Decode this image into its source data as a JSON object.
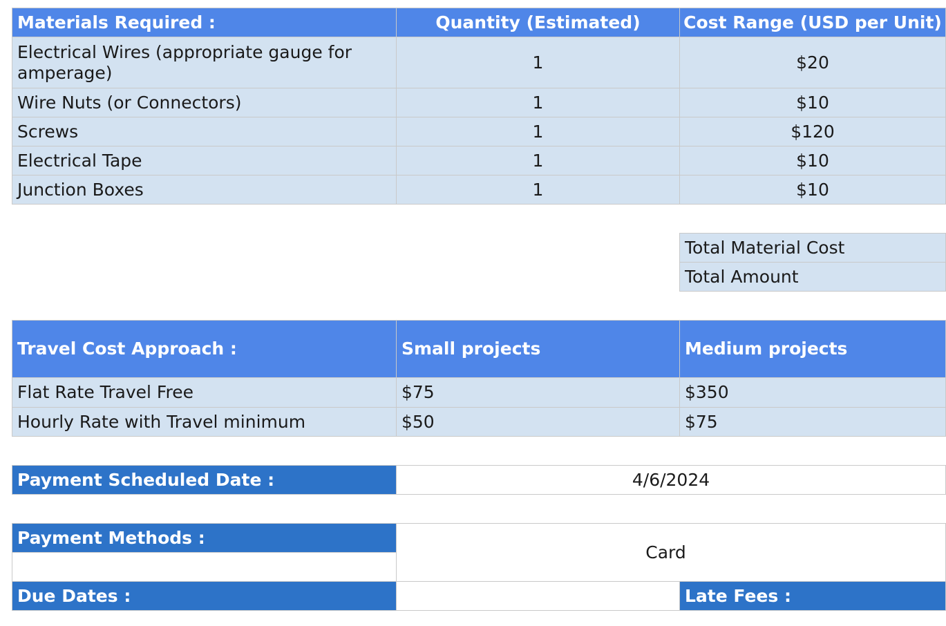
{
  "materials": {
    "headers": [
      "Materials Required :",
      "Quantity (Estimated)",
      "Cost Range (USD per Unit)"
    ],
    "rows": [
      {
        "item": "Electrical Wires (appropriate gauge for amperage)",
        "qty": "1",
        "cost": "$20"
      },
      {
        "item": "Wire Nuts (or Connectors)",
        "qty": "1",
        "cost": "$10"
      },
      {
        "item": "Screws",
        "qty": "1",
        "cost": "$120"
      },
      {
        "item": "Electrical Tape",
        "qty": "1",
        "cost": "$10"
      },
      {
        "item": "Junction Boxes",
        "qty": "1",
        "cost": "$10"
      }
    ]
  },
  "totals": {
    "material_cost_label": "Total Material Cost",
    "amount_label": "Total Amount"
  },
  "travel": {
    "headers": [
      "Travel Cost Approach :",
      "Small projects",
      "Medium projects"
    ],
    "rows": [
      {
        "label": "Flat Rate Travel Free",
        "small": "$75",
        "medium": "$350"
      },
      {
        "label": "Hourly Rate with Travel minimum",
        "small": "$50",
        "medium": "$75"
      }
    ]
  },
  "payment": {
    "scheduled_label": "Payment Scheduled Date :",
    "scheduled_value": "4/6/2024",
    "methods_label": "Payment Methods :",
    "methods_value": "Card",
    "due_label": "Due Dates :",
    "late_fees_label": "Late Fees :"
  }
}
